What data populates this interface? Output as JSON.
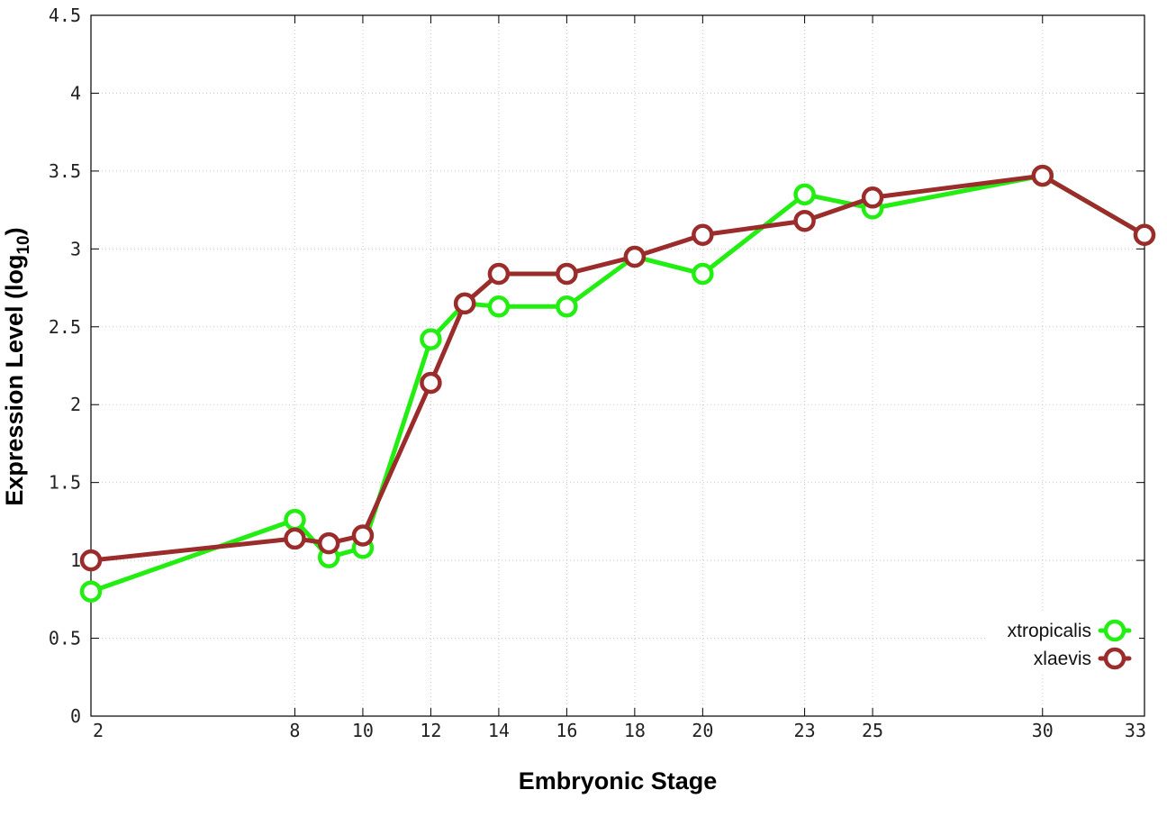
{
  "chart_data": {
    "type": "line",
    "title": "",
    "xlabel": "Embryonic Stage",
    "ylabel_main": "Expression Level (log",
    "ylabel_sub": "10",
    "ylabel_end": ")",
    "ylim": [
      0,
      4.5
    ],
    "xlim": [
      2,
      33
    ],
    "y_ticks": [
      0,
      0.5,
      1,
      1.5,
      2,
      2.5,
      3,
      3.5,
      4,
      4.5
    ],
    "y_tick_labels": [
      "0",
      "0.5",
      "1",
      "1.5",
      "2",
      "2.5",
      "3",
      "3.5",
      "4",
      "4.5"
    ],
    "x": [
      2,
      8,
      9,
      10,
      12,
      13,
      14,
      16,
      18,
      20,
      23,
      25,
      30,
      33
    ],
    "x_tick_values": [
      2,
      8,
      10,
      12,
      14,
      16,
      18,
      20,
      23,
      25,
      30,
      33
    ],
    "x_tick_labels": [
      "2",
      "8",
      "10",
      "12",
      "14",
      "16",
      "18",
      "20",
      "23",
      "25",
      "30",
      "33"
    ],
    "grid": true,
    "legend_position": "bottom-right",
    "series": [
      {
        "name": "xtropicalis",
        "color": "#22ee11",
        "values": [
          0.8,
          1.26,
          1.02,
          1.08,
          2.42,
          2.65,
          2.63,
          2.63,
          2.95,
          2.84,
          3.35,
          3.26,
          3.47,
          3.09
        ]
      },
      {
        "name": "xlaevis",
        "color": "#9b2c2c",
        "values": [
          1.0,
          1.14,
          1.11,
          1.16,
          2.14,
          2.65,
          2.84,
          2.84,
          2.95,
          3.09,
          3.18,
          3.33,
          3.47,
          3.09
        ]
      }
    ]
  }
}
